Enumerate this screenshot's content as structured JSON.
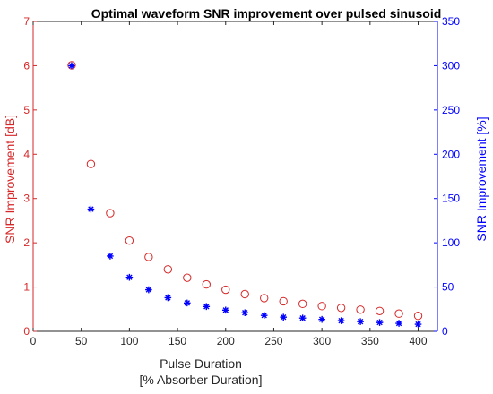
{
  "chart_data": {
    "type": "scatter",
    "title": "Optimal waveform SNR improvement over pulsed sinusoid",
    "xlabel": [
      "Pulse Duration",
      "[% Absorber Duration]"
    ],
    "ylabel_left": "SNR Improvement [dB]",
    "ylabel_right": "SNR Improvement [%]",
    "xlim": [
      0,
      420
    ],
    "ylim_left": [
      0,
      7
    ],
    "ylim_right": [
      0,
      350
    ],
    "x_ticks": [
      "0",
      "50",
      "100",
      "150",
      "200",
      "250",
      "300",
      "350",
      "400"
    ],
    "y_left_ticks": [
      "0",
      "1",
      "2",
      "3",
      "4",
      "5",
      "6",
      "7"
    ],
    "y_right_ticks": [
      "0",
      "50",
      "100",
      "150",
      "200",
      "250",
      "300",
      "350"
    ],
    "grid": false,
    "colors": {
      "left": "#d62728",
      "right": "#0000ff",
      "axis": "#262626"
    },
    "series": [
      {
        "axis": "left",
        "marker": "circle",
        "x": [
          40,
          60,
          80,
          100,
          120,
          140,
          160,
          180,
          200,
          220,
          240,
          260,
          280,
          300,
          320,
          340,
          360,
          380,
          400
        ],
        "y": [
          6.01,
          3.78,
          2.67,
          2.05,
          1.68,
          1.4,
          1.21,
          1.06,
          0.94,
          0.84,
          0.75,
          0.68,
          0.62,
          0.57,
          0.53,
          0.49,
          0.46,
          0.4,
          0.35
        ]
      },
      {
        "axis": "right",
        "marker": "asterisk",
        "x": [
          40,
          60,
          80,
          100,
          120,
          140,
          160,
          180,
          200,
          220,
          240,
          260,
          280,
          300,
          320,
          340,
          360,
          380,
          400
        ],
        "y": [
          300,
          138,
          85,
          61,
          47,
          38,
          32,
          28,
          24,
          21,
          18,
          16,
          15,
          13.5,
          12,
          11,
          10,
          9,
          8
        ]
      }
    ]
  }
}
